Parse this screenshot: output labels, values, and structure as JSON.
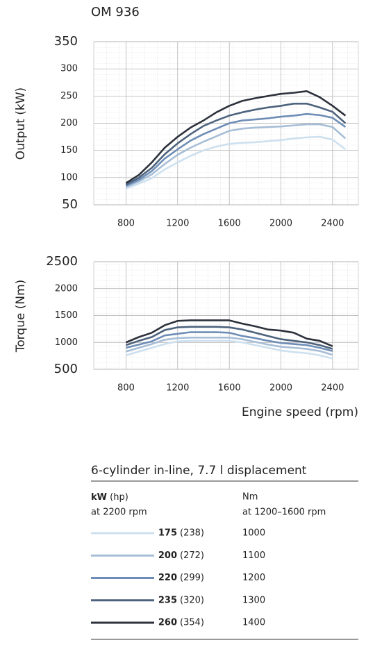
{
  "chart_data": [
    {
      "type": "line",
      "title": "OM 936",
      "ylabel": "Output (kW)",
      "x": [
        800,
        900,
        1000,
        1100,
        1200,
        1300,
        1400,
        1500,
        1600,
        1700,
        1800,
        1900,
        2000,
        2100,
        2200,
        2300,
        2400,
        2500
      ],
      "xlim": [
        550,
        2600
      ],
      "xticks": [
        800,
        1200,
        1600,
        2000,
        2400
      ],
      "ylim": [
        50,
        350
      ],
      "yticks": [
        50,
        100,
        150,
        200,
        250,
        300,
        350
      ],
      "grid": true,
      "series": [
        {
          "color": "#cde0ef",
          "values": [
            80,
            89,
            99,
            115,
            128,
            140,
            150,
            157,
            162,
            164,
            165,
            167,
            169,
            172,
            174,
            175,
            170,
            152
          ]
        },
        {
          "color": "#a6bdd6",
          "values": [
            83,
            93,
            106,
            125,
            142,
            155,
            166,
            176,
            186,
            190,
            192,
            193,
            194,
            196,
            198,
            198,
            193,
            172
          ]
        },
        {
          "color": "#6e8db6",
          "values": [
            85,
            96,
            112,
            135,
            152,
            168,
            180,
            190,
            200,
            205,
            207,
            209,
            212,
            214,
            217,
            215,
            210,
            193
          ]
        },
        {
          "color": "#4d627d",
          "values": [
            87,
            100,
            118,
            143,
            163,
            180,
            195,
            205,
            214,
            220,
            225,
            229,
            232,
            236,
            236,
            229,
            221,
            200
          ]
        },
        {
          "color": "#2c313b",
          "values": [
            90,
            105,
            128,
            155,
            175,
            192,
            205,
            220,
            232,
            241,
            246,
            250,
            254,
            256,
            259,
            248,
            232,
            214
          ]
        }
      ]
    },
    {
      "type": "line",
      "ylabel": "Torque (Nm)",
      "xlabel": "Engine speed (rpm)",
      "x": [
        800,
        900,
        1000,
        1100,
        1200,
        1300,
        1400,
        1500,
        1600,
        1700,
        1800,
        1900,
        2000,
        2100,
        2200,
        2300,
        2400
      ],
      "xlim": [
        550,
        2600
      ],
      "xticks": [
        800,
        1200,
        1600,
        2000,
        2400
      ],
      "ylim": [
        500,
        2500
      ],
      "yticks": [
        500,
        1000,
        1500,
        2000,
        2500
      ],
      "grid": true,
      "series": [
        {
          "color": "#cde0ef",
          "values": [
            760,
            830,
            900,
            970,
            1020,
            1030,
            1030,
            1030,
            1030,
            1000,
            950,
            900,
            850,
            820,
            800,
            760,
            700
          ]
        },
        {
          "color": "#a6bdd6",
          "values": [
            830,
            900,
            970,
            1050,
            1080,
            1090,
            1090,
            1090,
            1090,
            1060,
            1010,
            960,
            920,
            900,
            880,
            840,
            770
          ]
        },
        {
          "color": "#6e8db6",
          "values": [
            900,
            960,
            1020,
            1130,
            1160,
            1190,
            1190,
            1190,
            1180,
            1120,
            1080,
            1030,
            990,
            970,
            950,
            900,
            840
          ]
        },
        {
          "color": "#4d627d",
          "values": [
            950,
            1030,
            1100,
            1230,
            1280,
            1290,
            1290,
            1290,
            1280,
            1240,
            1180,
            1120,
            1060,
            1030,
            1000,
            950,
            880
          ]
        },
        {
          "color": "#2c313b",
          "values": [
            1000,
            1100,
            1180,
            1320,
            1400,
            1410,
            1410,
            1410,
            1410,
            1350,
            1300,
            1240,
            1220,
            1180,
            1070,
            1030,
            930
          ]
        }
      ]
    }
  ],
  "legend": {
    "title": "6-cylinder in-line, 7.7 l displacement",
    "header": {
      "kw": "kW",
      "hp": "(hp)",
      "rpm": "at 2200 rpm",
      "nm": "Nm",
      "nm_rpm": "at 1200–1600 rpm"
    },
    "rows": [
      {
        "kw": "175",
        "hp": "(238)",
        "nm": "1000"
      },
      {
        "kw": "200",
        "hp": "(272)",
        "nm": "1100"
      },
      {
        "kw": "220",
        "hp": "(299)",
        "nm": "1200"
      },
      {
        "kw": "235",
        "hp": "(320)",
        "nm": "1300"
      },
      {
        "kw": "260",
        "hp": "(354)",
        "nm": "1400"
      }
    ]
  }
}
